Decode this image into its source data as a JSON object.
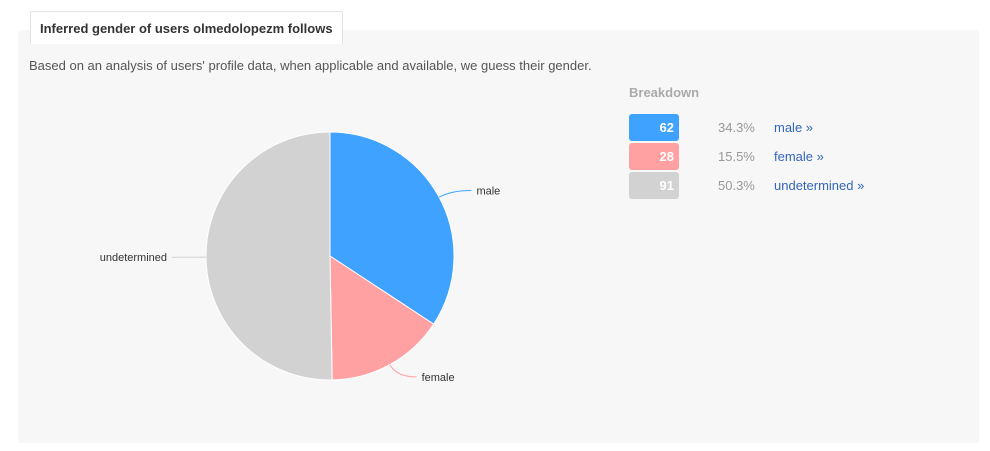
{
  "tab_title": "Inferred gender of users olmedolopezm follows",
  "description": "Based on an analysis of users' profile data, when applicable and available, we guess their gender.",
  "breakdown": {
    "title": "Breakdown",
    "rows": [
      {
        "count": "62",
        "percent": "34.3%",
        "link": "male »",
        "color": "#3fa2ff"
      },
      {
        "count": "28",
        "percent": "15.5%",
        "link": "female »",
        "color": "#ffa0a3"
      },
      {
        "count": "91",
        "percent": "50.3%",
        "link": "undetermined »",
        "color": "#d2d2d2"
      }
    ]
  },
  "chart_data": {
    "type": "pie",
    "categories": [
      "male",
      "female",
      "undetermined"
    ],
    "values": [
      62,
      28,
      91
    ],
    "colors": [
      "#3fa2ff",
      "#ffa0a3",
      "#d2d2d2"
    ],
    "start_angle_deg": 0,
    "direction": "clockwise"
  }
}
